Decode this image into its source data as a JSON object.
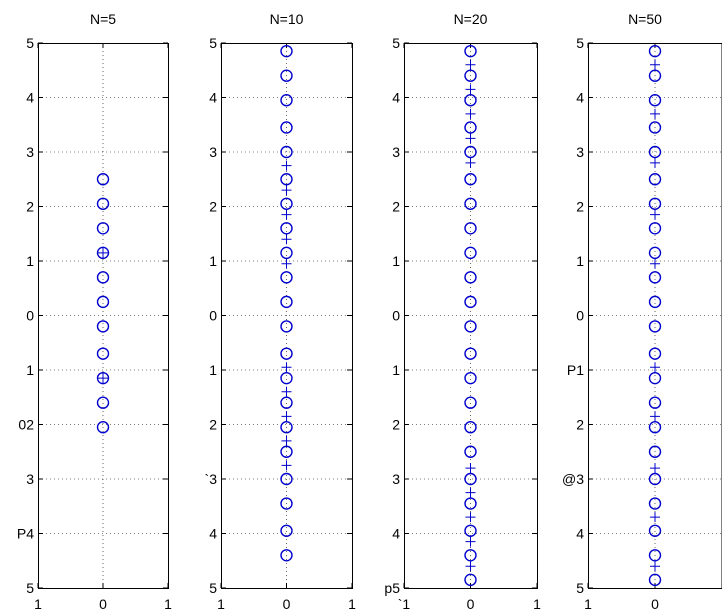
{
  "style": {
    "series_color": "#0000cc",
    "axis_color": "#000000",
    "background": "#ffffff"
  },
  "chart_data": [
    {
      "type": "scatter",
      "title": "N=5",
      "xlim": [
        -1,
        1
      ],
      "ylim": [
        -5,
        5
      ],
      "grid": true,
      "marker": "o",
      "x_tick_labels": [
        "1",
        "0",
        "1"
      ],
      "y_tick_labels": [
        "5",
        "4",
        "3",
        "2",
        "1",
        "0",
        "1",
        "02",
        "3",
        "P4",
        "5"
      ],
      "points_y": [
        2.5,
        2.05,
        1.6,
        1.15,
        0.7,
        0.25,
        -0.2,
        -0.7,
        -1.15,
        -1.6,
        -2.05
      ],
      "minor_markers_y": [
        1.15,
        -1.15
      ]
    },
    {
      "type": "scatter",
      "title": "N=10",
      "xlim": [
        -1,
        1
      ],
      "ylim": [
        -5,
        5
      ],
      "grid": true,
      "marker": "o",
      "x_tick_labels": [
        "1",
        "0",
        "1"
      ],
      "y_tick_labels": [
        "5",
        "4",
        "3",
        "2",
        "1",
        "0",
        "1",
        "2",
        "`3",
        "4",
        "5"
      ],
      "points_y": [
        4.85,
        4.4,
        3.95,
        3.45,
        3.0,
        2.5,
        2.05,
        1.6,
        1.15,
        0.7,
        0.25,
        -0.2,
        -0.7,
        -1.15,
        -1.6,
        -2.05,
        -2.5,
        -3.0,
        -3.45,
        -3.95,
        -4.4
      ],
      "minor_markers_y": [
        2.75,
        2.3,
        1.85,
        1.4,
        0.95,
        -0.95,
        -1.4,
        -1.85,
        -2.3,
        -2.75
      ]
    },
    {
      "type": "scatter",
      "title": "N=20",
      "xlim": [
        -1,
        1
      ],
      "ylim": [
        -5,
        5
      ],
      "grid": true,
      "marker": "o",
      "x_tick_labels": [
        "`1",
        "0",
        "1"
      ],
      "y_tick_labels": [
        "5",
        "4",
        "3",
        "2",
        "1",
        "0",
        "1",
        "2",
        "3",
        "4",
        "p5"
      ],
      "points_y": [
        4.85,
        4.4,
        3.95,
        3.45,
        3.0,
        2.5,
        2.05,
        1.6,
        1.15,
        0.7,
        0.25,
        -0.2,
        -0.7,
        -1.15,
        -1.6,
        -2.05,
        -2.5,
        -3.0,
        -3.45,
        -3.95,
        -4.4,
        -4.85
      ],
      "minor_markers_y": [
        4.6,
        4.15,
        3.7,
        3.25,
        2.8,
        -2.8,
        -3.25,
        -3.7,
        -4.15,
        -4.6
      ]
    },
    {
      "type": "scatter",
      "title": "N=50",
      "xlim": [
        -1,
        1
      ],
      "ylim": [
        -5,
        5
      ],
      "grid": true,
      "marker": "o",
      "x_tick_labels": [
        "1",
        "0"
      ],
      "y_tick_labels": [
        "5",
        "4",
        "3",
        "2",
        "1",
        "0",
        "P1",
        "2",
        "@3",
        "4",
        "5"
      ],
      "points_y": [
        4.85,
        4.4,
        3.95,
        3.45,
        3.0,
        2.5,
        2.05,
        1.6,
        1.15,
        0.7,
        0.25,
        -0.2,
        -0.7,
        -1.15,
        -1.6,
        -2.05,
        -2.5,
        -3.0,
        -3.45,
        -3.95,
        -4.4,
        -4.85
      ],
      "minor_markers_y": [
        4.6,
        3.7,
        2.8,
        1.85,
        0.95,
        -0.95,
        -1.85,
        -2.8,
        -3.7,
        -4.6
      ]
    }
  ]
}
